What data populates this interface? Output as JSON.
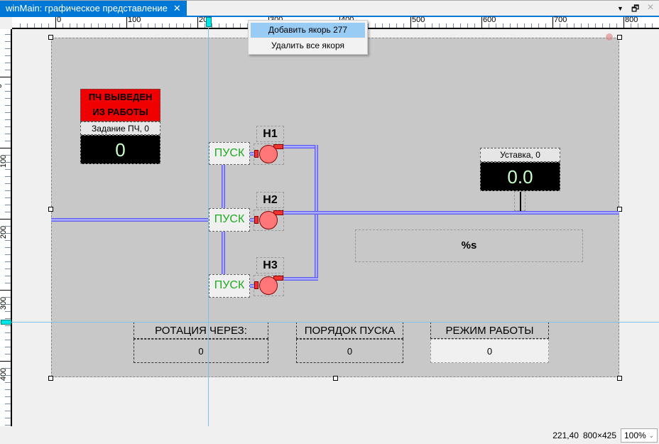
{
  "tab": {
    "title": "winMain: графическое представление",
    "close": "✕"
  },
  "window_controls": {
    "menu": "▼",
    "restore": "🗗",
    "close": "✕"
  },
  "ruler": {
    "h_labels": [
      "0",
      "100",
      "200",
      "300",
      "400",
      "500",
      "600",
      "700",
      "800"
    ],
    "v_labels": [
      "0",
      "100",
      "200",
      "300",
      "400"
    ]
  },
  "context_menu": {
    "items": [
      "Добавить якорь 277",
      "Удалить все якоря"
    ]
  },
  "alarm": {
    "text_line1": "ПЧ ВЫВЕДЕН",
    "text_line2": "ИЗ РАБОТЫ",
    "setpoint_label": "Задание ПЧ, 0",
    "setpoint_value": "0"
  },
  "pumps": [
    {
      "name": "Н1",
      "start": "ПУСК"
    },
    {
      "name": "Н2",
      "start": "ПУСК"
    },
    {
      "name": "Н3",
      "start": "ПУСК"
    }
  ],
  "ustavka": {
    "label": "Уставка, 0",
    "value": "0.0"
  },
  "format_text": "%s",
  "bottom": [
    {
      "label": "РОТАЦИЯ ЧЕРЕЗ:",
      "value": "0"
    },
    {
      "label": "ПОРЯДОК ПУСКА",
      "value": "0"
    },
    {
      "label": "РЕЖИМ РАБОТЫ",
      "value": "0"
    }
  ],
  "status": {
    "coords": "221,40",
    "size": "800×425",
    "zoom": "100%"
  },
  "colors": {
    "accent": "#0078d7",
    "alarm": "#f00000",
    "pipe": "#4444ee",
    "pump": "#ff7777",
    "start_text": "#1faa1f",
    "value_text": "#c8ffc8"
  }
}
